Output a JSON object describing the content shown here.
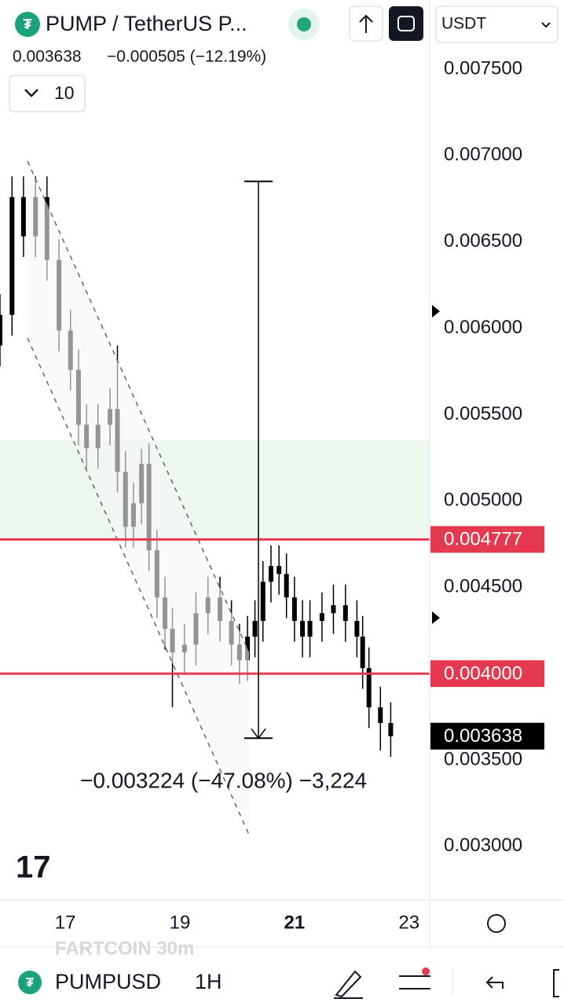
{
  "header": {
    "title": "PUMP / TetherUS P...",
    "change": "−0.000505 (−12.19%)",
    "indicator_count": "10",
    "currency": "USDT"
  },
  "chart_data": {
    "type": "candlestick",
    "x": [
      15.86,
      16.07,
      16.27,
      16.48,
      16.68,
      16.89,
      17.09,
      17.23,
      17.37,
      17.57,
      17.78,
      17.91,
      18.05,
      18.19,
      18.33,
      18.46,
      18.6,
      18.74,
      18.87,
      19.08,
      19.28,
      19.49,
      19.7,
      19.9,
      20.04,
      20.18,
      20.31,
      20.45,
      20.59,
      20.73,
      20.86,
      21.0,
      21.14,
      21.27,
      21.48,
      21.68,
      21.89,
      22.09,
      22.19,
      22.3,
      22.5,
      22.68
    ],
    "open": [
      0.0059,
      0.006077,
      0.006759,
      0.006532,
      0.006759,
      0.006395,
      0.005986,
      0.005759,
      0.005441,
      0.005305,
      0.005441,
      0.005532,
      0.005168,
      0.00485,
      0.004986,
      0.005214,
      0.004714,
      0.004441,
      0.004259,
      0.004123,
      0.004168,
      0.00435,
      0.004441,
      0.004305,
      0.004168,
      0.004077,
      0.004214,
      0.004305,
      0.004532,
      0.004623,
      0.004577,
      0.004441,
      0.004305,
      0.004214,
      0.004305,
      0.00435,
      0.004396,
      0.004305,
      0.004214,
      0.004032,
      0.003805,
      0.003714
    ],
    "high": [
      0.006197,
      0.006879,
      0.006879,
      0.006879,
      0.006879,
      0.006515,
      0.006106,
      0.005879,
      0.005561,
      0.005561,
      0.005652,
      0.0059,
      0.005288,
      0.005106,
      0.0053,
      0.005334,
      0.004834,
      0.004561,
      0.004379,
      0.004288,
      0.00447,
      0.004561,
      0.004561,
      0.004425,
      0.004288,
      0.004334,
      0.004425,
      0.004652,
      0.004743,
      0.004743,
      0.004697,
      0.004561,
      0.004425,
      0.004425,
      0.00447,
      0.004516,
      0.004516,
      0.004425,
      0.004334,
      0.004152,
      0.003925,
      0.003834
    ],
    "low": [
      0.00578,
      0.005957,
      0.006412,
      0.006412,
      0.006275,
      0.005866,
      0.005639,
      0.005321,
      0.005185,
      0.005185,
      0.005321,
      0.005048,
      0.00473,
      0.00473,
      0.004866,
      0.004594,
      0.004321,
      0.004139,
      0.003805,
      0.004003,
      0.004048,
      0.00423,
      0.004185,
      0.004048,
      0.003941,
      0.003957,
      0.004094,
      0.004185,
      0.004412,
      0.004457,
      0.004321,
      0.004185,
      0.004094,
      0.004094,
      0.004185,
      0.00423,
      0.004185,
      0.004094,
      0.003912,
      0.003685,
      0.003555,
      0.003518
    ],
    "close": [
      0.006077,
      0.006759,
      0.006532,
      0.006759,
      0.006395,
      0.005986,
      0.005759,
      0.005441,
      0.005305,
      0.005441,
      0.005532,
      0.005168,
      0.00485,
      0.004986,
      0.005214,
      0.004714,
      0.004441,
      0.004259,
      0.004123,
      0.004168,
      0.00435,
      0.004441,
      0.004305,
      0.004168,
      0.004077,
      0.004214,
      0.004305,
      0.004532,
      0.004623,
      0.004577,
      0.004441,
      0.004305,
      0.004214,
      0.004305,
      0.00435,
      0.004396,
      0.004305,
      0.004214,
      0.004032,
      0.003805,
      0.003714,
      0.003638
    ],
    "color": "#000000",
    "xlim": [
      15.86,
      23.36
    ],
    "xticks": [
      17,
      19,
      21,
      23
    ],
    "ylim": [
      0.00269,
      0.0079
    ],
    "yticks": [
      {
        "value": 0.0075,
        "label": "0.007500"
      },
      {
        "value": 0.007,
        "label": "0.007000"
      },
      {
        "value": 0.0065,
        "label": "0.006500"
      },
      {
        "value": 0.006,
        "label": "0.006000"
      },
      {
        "value": 0.0055,
        "label": "0.005500"
      },
      {
        "value": 0.005,
        "label": "0.005000"
      },
      {
        "value": 0.0045,
        "label": "0.004500"
      },
      {
        "value": 0.004,
        "label": "0.004000"
      },
      {
        "value": 0.0035,
        "label": "0.003500"
      },
      {
        "value": 0.003,
        "label": "0.003000"
      }
    ],
    "hlines": [
      {
        "value": 0.004777,
        "color": "#e53950"
      },
      {
        "value": 0.004,
        "label": "0.004000",
        "color": "#e53950"
      }
    ],
    "last_price": 0.003638,
    "zone": {
      "from": 0.004777,
      "to": 0.00535,
      "color": "#eef7ee"
    },
    "measure": {
      "from": 0.00685,
      "to": 0.003626,
      "label": "−0.003224 (−47.08%) −3,224"
    }
  },
  "footer": {
    "ghost": "FARTCOIN    30m",
    "symbol": "PUMPUSD",
    "interval": "1H"
  }
}
